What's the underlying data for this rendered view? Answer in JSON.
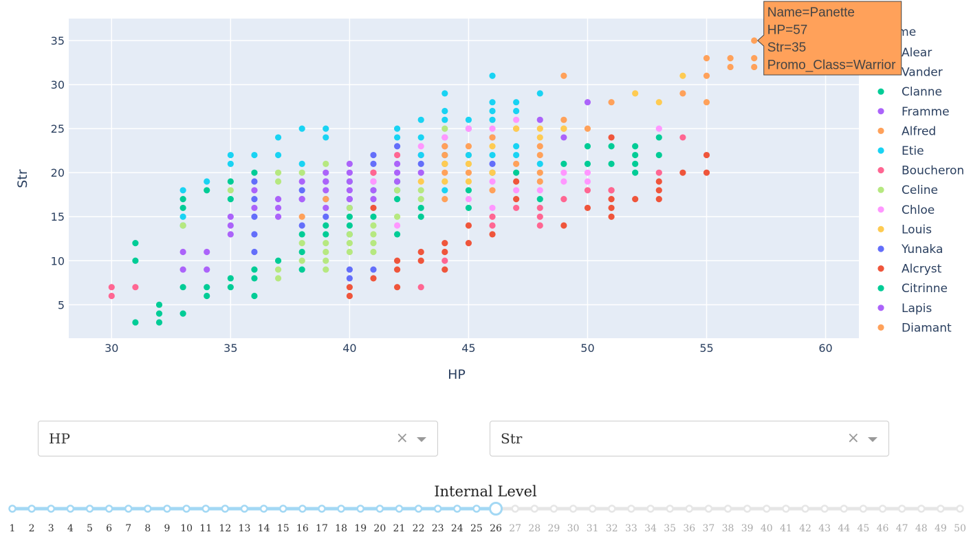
{
  "chart_data": {
    "type": "scatter",
    "xlabel": "HP",
    "ylabel": "Str",
    "xlim": [
      28.2,
      61.4
    ],
    "ylim": [
      1.2,
      37.5
    ],
    "xticks": [
      30,
      35,
      40,
      45,
      50,
      55,
      60
    ],
    "yticks": [
      5,
      10,
      15,
      20,
      25,
      30,
      35
    ],
    "grid": true,
    "legend_position": "right",
    "legend_title": "Name",
    "series": [
      {
        "name": "Alear",
        "color": "#636efa",
        "points": [
          [
            36,
            19
          ],
          [
            36,
            17
          ],
          [
            36,
            15
          ],
          [
            36,
            13
          ],
          [
            36,
            11
          ],
          [
            38,
            18
          ],
          [
            38,
            17
          ],
          [
            38,
            14
          ],
          [
            39,
            19
          ],
          [
            39,
            17
          ],
          [
            39,
            15
          ],
          [
            40,
            17
          ],
          [
            40,
            16
          ],
          [
            40,
            9
          ],
          [
            40,
            8
          ],
          [
            41,
            22
          ],
          [
            41,
            21
          ],
          [
            41,
            9
          ],
          [
            42,
            23
          ],
          [
            43,
            21
          ],
          [
            46,
            21
          ]
        ]
      },
      {
        "name": "Vander",
        "color": "#ef553b",
        "points": [
          [
            40,
            7
          ],
          [
            40,
            6
          ],
          [
            41,
            20
          ],
          [
            41,
            16
          ],
          [
            41,
            8
          ],
          [
            42,
            10
          ],
          [
            42,
            9
          ],
          [
            42,
            7
          ],
          [
            43,
            11
          ],
          [
            43,
            10
          ],
          [
            44,
            12
          ],
          [
            44,
            11
          ],
          [
            44,
            9
          ],
          [
            45,
            14
          ],
          [
            45,
            12
          ],
          [
            46,
            13
          ],
          [
            47,
            19
          ],
          [
            47,
            17
          ],
          [
            49,
            14
          ],
          [
            50,
            16
          ],
          [
            51,
            24
          ],
          [
            51,
            18
          ],
          [
            51,
            17
          ],
          [
            51,
            16
          ],
          [
            51,
            15
          ],
          [
            52,
            17
          ],
          [
            53,
            19
          ],
          [
            53,
            18
          ],
          [
            53,
            17
          ],
          [
            54,
            20
          ],
          [
            55,
            22
          ],
          [
            55,
            20
          ]
        ]
      },
      {
        "name": "Clanne",
        "color": "#00cc96",
        "points": [
          [
            31,
            12
          ],
          [
            31,
            10
          ],
          [
            31,
            3
          ],
          [
            32,
            5
          ],
          [
            32,
            4
          ],
          [
            32,
            3
          ],
          [
            33,
            17
          ],
          [
            33,
            16
          ],
          [
            33,
            14
          ],
          [
            33,
            7
          ],
          [
            33,
            4
          ],
          [
            34,
            18
          ],
          [
            34,
            7
          ],
          [
            34,
            6
          ],
          [
            35,
            19
          ],
          [
            35,
            17
          ],
          [
            35,
            8
          ],
          [
            35,
            7
          ],
          [
            36,
            20
          ],
          [
            36,
            9
          ],
          [
            36,
            8
          ],
          [
            36,
            6
          ],
          [
            37,
            10
          ],
          [
            38,
            13
          ],
          [
            38,
            11
          ],
          [
            38,
            9
          ],
          [
            39,
            14
          ],
          [
            39,
            13
          ],
          [
            40,
            19
          ],
          [
            40,
            15
          ],
          [
            40,
            14
          ],
          [
            40,
            13
          ],
          [
            41,
            18
          ],
          [
            41,
            15
          ],
          [
            42,
            19
          ],
          [
            42,
            18
          ],
          [
            42,
            17
          ],
          [
            42,
            13
          ],
          [
            43,
            16
          ],
          [
            43,
            15
          ],
          [
            44,
            22
          ],
          [
            44,
            21
          ],
          [
            45,
            18
          ],
          [
            45,
            16
          ],
          [
            46,
            20
          ],
          [
            47,
            20
          ],
          [
            48,
            17
          ],
          [
            49,
            21
          ],
          [
            50,
            23
          ],
          [
            50,
            21
          ],
          [
            51,
            23
          ],
          [
            51,
            21
          ],
          [
            52,
            23
          ],
          [
            52,
            22
          ],
          [
            52,
            21
          ],
          [
            52,
            20
          ],
          [
            53,
            24
          ],
          [
            53,
            22
          ]
        ]
      },
      {
        "name": "Framme",
        "color": "#ab63fa",
        "points": [
          [
            33,
            11
          ],
          [
            33,
            9
          ],
          [
            34,
            11
          ],
          [
            34,
            9
          ],
          [
            35,
            15
          ],
          [
            35,
            14
          ],
          [
            35,
            13
          ],
          [
            36,
            18
          ],
          [
            36,
            16
          ],
          [
            37,
            17
          ],
          [
            37,
            16
          ],
          [
            37,
            15
          ],
          [
            38,
            19
          ],
          [
            38,
            17
          ],
          [
            39,
            20
          ],
          [
            39,
            19
          ],
          [
            39,
            18
          ],
          [
            39,
            16
          ],
          [
            40,
            21
          ],
          [
            40,
            20
          ],
          [
            40,
            19
          ],
          [
            40,
            18
          ],
          [
            40,
            17
          ],
          [
            41,
            19
          ],
          [
            41,
            18
          ],
          [
            41,
            17
          ],
          [
            42,
            21
          ],
          [
            42,
            20
          ],
          [
            42,
            19
          ],
          [
            43,
            22
          ],
          [
            43,
            20
          ],
          [
            44,
            24
          ],
          [
            44,
            23
          ],
          [
            45,
            25
          ],
          [
            46,
            24
          ],
          [
            48,
            26
          ],
          [
            49,
            24
          ],
          [
            50,
            28
          ]
        ]
      },
      {
        "name": "Alfred",
        "color": "#ffa15a",
        "points": [
          [
            38,
            15
          ],
          [
            39,
            17
          ],
          [
            44,
            23
          ],
          [
            44,
            22
          ],
          [
            44,
            21
          ],
          [
            44,
            20
          ],
          [
            44,
            17
          ],
          [
            45,
            23
          ],
          [
            45,
            22
          ],
          [
            45,
            20
          ],
          [
            46,
            24
          ],
          [
            46,
            20
          ],
          [
            46,
            18
          ],
          [
            47,
            25
          ],
          [
            47,
            21
          ],
          [
            48,
            23
          ],
          [
            48,
            22
          ],
          [
            48,
            20
          ],
          [
            48,
            19
          ],
          [
            49,
            31
          ],
          [
            49,
            26
          ],
          [
            49,
            25
          ],
          [
            50,
            25
          ],
          [
            51,
            28
          ],
          [
            54,
            29
          ],
          [
            55,
            33
          ],
          [
            55,
            31
          ],
          [
            55,
            28
          ],
          [
            56,
            33
          ],
          [
            56,
            32
          ],
          [
            57,
            35
          ],
          [
            57,
            33
          ],
          [
            57,
            32
          ]
        ]
      },
      {
        "name": "Etie",
        "color": "#19d3f3",
        "points": [
          [
            33,
            18
          ],
          [
            33,
            15
          ],
          [
            34,
            19
          ],
          [
            35,
            22
          ],
          [
            35,
            21
          ],
          [
            36,
            22
          ],
          [
            37,
            24
          ],
          [
            37,
            22
          ],
          [
            38,
            25
          ],
          [
            38,
            21
          ],
          [
            39,
            25
          ],
          [
            39,
            24
          ],
          [
            42,
            25
          ],
          [
            42,
            24
          ],
          [
            43,
            26
          ],
          [
            43,
            24
          ],
          [
            43,
            22
          ],
          [
            44,
            29
          ],
          [
            44,
            27
          ],
          [
            44,
            26
          ],
          [
            44,
            18
          ],
          [
            45,
            26
          ],
          [
            45,
            22
          ],
          [
            46,
            31
          ],
          [
            46,
            28
          ],
          [
            46,
            27
          ],
          [
            46,
            26
          ],
          [
            46,
            22
          ],
          [
            47,
            28
          ],
          [
            47,
            27
          ],
          [
            47,
            23
          ],
          [
            47,
            22
          ],
          [
            48,
            29
          ],
          [
            48,
            21
          ]
        ]
      },
      {
        "name": "Boucheron",
        "color": "#ff6692",
        "points": [
          [
            30,
            7
          ],
          [
            30,
            6
          ],
          [
            31,
            7
          ],
          [
            41,
            20
          ],
          [
            42,
            22
          ],
          [
            43,
            7
          ],
          [
            44,
            10
          ],
          [
            46,
            15
          ],
          [
            46,
            14
          ],
          [
            47,
            16
          ],
          [
            48,
            16
          ],
          [
            48,
            15
          ],
          [
            48,
            14
          ],
          [
            49,
            17
          ],
          [
            50,
            18
          ],
          [
            51,
            18
          ],
          [
            53,
            20
          ],
          [
            54,
            24
          ]
        ]
      },
      {
        "name": "Celine",
        "color": "#b6e880",
        "points": [
          [
            33,
            14
          ],
          [
            35,
            18
          ],
          [
            37,
            20
          ],
          [
            37,
            19
          ],
          [
            37,
            9
          ],
          [
            37,
            8
          ],
          [
            38,
            20
          ],
          [
            38,
            12
          ],
          [
            38,
            10
          ],
          [
            39,
            21
          ],
          [
            39,
            12
          ],
          [
            39,
            11
          ],
          [
            39,
            10
          ],
          [
            39,
            9
          ],
          [
            40,
            16
          ],
          [
            40,
            13
          ],
          [
            40,
            12
          ],
          [
            40,
            11
          ],
          [
            41,
            14
          ],
          [
            41,
            13
          ],
          [
            41,
            12
          ],
          [
            41,
            11
          ],
          [
            42,
            18
          ],
          [
            42,
            15
          ],
          [
            43,
            18
          ],
          [
            43,
            17
          ],
          [
            44,
            25
          ],
          [
            44,
            19
          ],
          [
            45,
            21
          ]
        ]
      },
      {
        "name": "Chloe",
        "color": "#ff97ff",
        "points": [
          [
            41,
            19
          ],
          [
            42,
            14
          ],
          [
            43,
            23
          ],
          [
            44,
            24
          ],
          [
            45,
            25
          ],
          [
            45,
            17
          ],
          [
            46,
            25
          ],
          [
            46,
            19
          ],
          [
            46,
            16
          ],
          [
            47,
            26
          ],
          [
            47,
            18
          ],
          [
            48,
            18
          ],
          [
            49,
            20
          ],
          [
            49,
            19
          ],
          [
            50,
            20
          ],
          [
            50,
            19
          ],
          [
            53,
            25
          ]
        ]
      },
      {
        "name": "Louis",
        "color": "#fecb52",
        "points": [
          [
            43,
            19
          ],
          [
            44,
            21
          ],
          [
            44,
            19
          ],
          [
            45,
            21
          ],
          [
            45,
            19
          ],
          [
            46,
            23
          ],
          [
            46,
            20
          ],
          [
            47,
            25
          ],
          [
            48,
            25
          ],
          [
            48,
            24
          ],
          [
            49,
            25
          ],
          [
            52,
            29
          ],
          [
            53,
            28
          ],
          [
            54,
            31
          ]
        ]
      },
      {
        "name": "Yunaka",
        "color": "#636efa",
        "points": []
      },
      {
        "name": "Alcryst",
        "color": "#ef553b",
        "points": []
      },
      {
        "name": "Citrinne",
        "color": "#00cc96",
        "points": []
      },
      {
        "name": "Lapis",
        "color": "#ab63fa",
        "points": []
      },
      {
        "name": "Diamant",
        "color": "#ffa15a",
        "points": []
      }
    ],
    "hover": {
      "point": [
        57,
        35
      ],
      "lines": [
        "Name=Panette",
        "HP=57",
        "Str=35",
        "Promo_Class=Warrior"
      ],
      "color": "#ffa15a"
    }
  },
  "controls": {
    "x_dropdown": {
      "value": "HP",
      "clear": "×"
    },
    "y_dropdown": {
      "value": "Str",
      "clear": "×"
    }
  },
  "slider": {
    "title": "Internal Level",
    "min": 1,
    "max": 50,
    "value": 26,
    "active_color": "#a3d8f4",
    "inactive_color": "#e6e6e6"
  }
}
